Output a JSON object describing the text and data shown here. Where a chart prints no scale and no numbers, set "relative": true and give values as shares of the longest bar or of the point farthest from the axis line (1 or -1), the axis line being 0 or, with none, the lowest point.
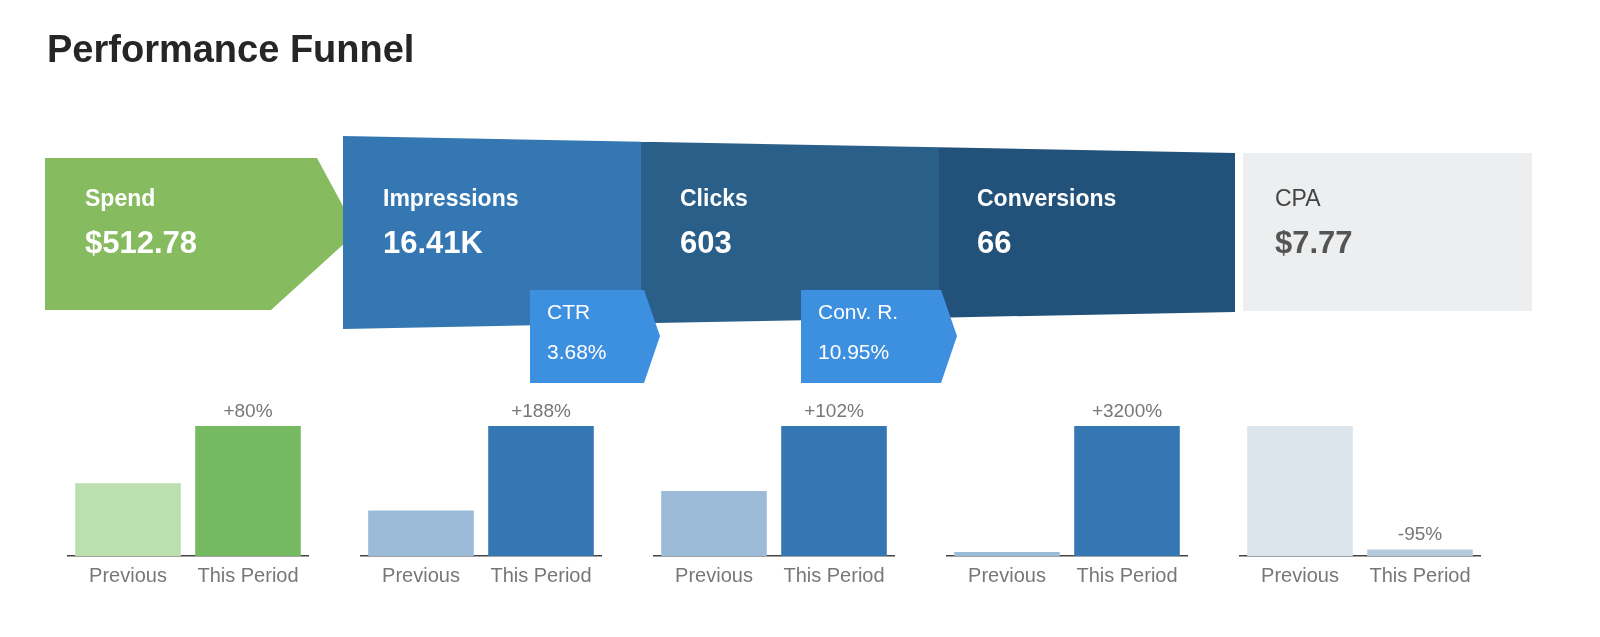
{
  "chart_data": [
    {
      "type": "other",
      "title": "Performance Funnel",
      "categories": [
        "Spend",
        "Impressions",
        "Clicks",
        "Conversions",
        "CPA"
      ],
      "value_labels": [
        "$512.78",
        "16.41K",
        "603",
        "66",
        "$7.77"
      ],
      "colors": [
        "#87bb5f",
        "#3577b3",
        "#2a5f8a",
        "#22527a",
        "#edeef0"
      ],
      "annotations": [
        "CTR",
        "3.68%",
        "Conv. R.",
        "10.95%"
      ]
    },
    {
      "type": "bar",
      "relative": true,
      "categories": [
        "Previous",
        "This Period"
      ],
      "values": [
        0.56,
        1
      ],
      "colors": [
        "#bcdfb0",
        "#75b960"
      ],
      "annotations": [
        {
          "text": "+80%",
          "x": "This Period",
          "y": 1
        }
      ]
    },
    {
      "type": "bar",
      "relative": true,
      "categories": [
        "Previous",
        "This Period"
      ],
      "values": [
        0.35,
        1
      ],
      "colors": [
        "#9bbbd9",
        "#3577b3"
      ],
      "annotations": [
        {
          "text": "+188%",
          "x": "This Period",
          "y": 1
        }
      ]
    },
    {
      "type": "bar",
      "relative": true,
      "categories": [
        "Previous",
        "This Period"
      ],
      "values": [
        0.5,
        1
      ],
      "colors": [
        "#9bbbd9",
        "#3577b3"
      ],
      "annotations": [
        {
          "text": "+102%",
          "x": "This Period",
          "y": 1
        }
      ]
    },
    {
      "type": "bar",
      "relative": true,
      "categories": [
        "Previous",
        "This Period"
      ],
      "values": [
        0.03,
        1
      ],
      "colors": [
        "#9bbbd9",
        "#3577b3"
      ],
      "annotations": [
        {
          "text": "+3200%",
          "x": "This Period",
          "y": 1
        }
      ]
    },
    {
      "type": "bar",
      "relative": true,
      "categories": [
        "Previous",
        "This Period"
      ],
      "values": [
        1,
        0.05
      ],
      "colors": [
        "#dce5ec",
        "#b5c9dc"
      ],
      "annotations": [
        {
          "text": "-95%",
          "x": "This Period",
          "y": 0.05
        }
      ]
    }
  ]
}
